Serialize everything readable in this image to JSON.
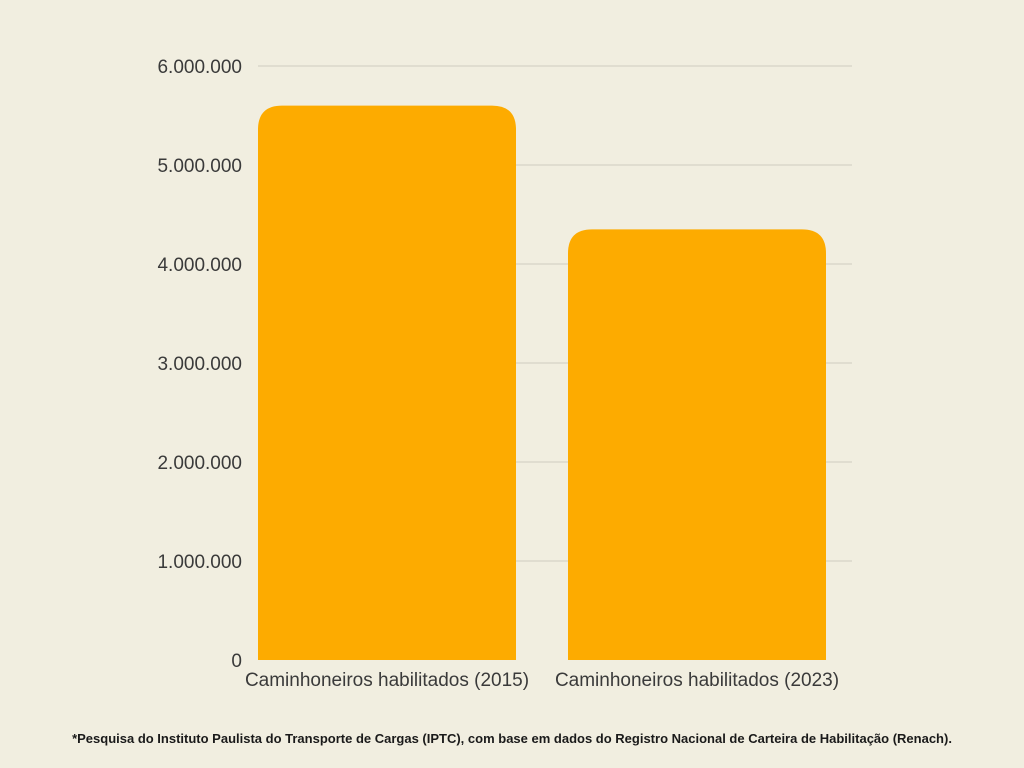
{
  "chart_data": {
    "type": "bar",
    "categories": [
      "Caminhoneiros habilitados (2015)",
      "Caminhoneiros habilitados (2023)"
    ],
    "values": [
      5600000,
      4350000
    ],
    "ylim": [
      0,
      6000000
    ],
    "yticks": [
      0,
      1000000,
      2000000,
      3000000,
      4000000,
      5000000,
      6000000
    ],
    "ytick_labels": [
      "0",
      "1.000.000",
      "2.000.000",
      "3.000.000",
      "4.000.000",
      "5.000.000",
      "6.000.000"
    ],
    "grid": true,
    "legend": "none",
    "bar_color": "#fdab00",
    "grid_color": "#cfccbf",
    "background_color": "#f1eee0"
  },
  "footnote": "*Pesquisa do Instituto Paulista do Transporte de Cargas (IPTC), com base em dados do Registro Nacional de Carteira de Habilitação (Renach)."
}
